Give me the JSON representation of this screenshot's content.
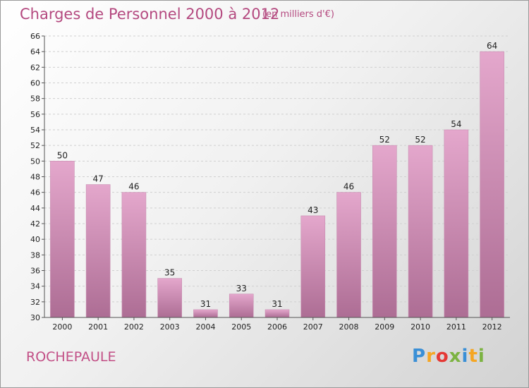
{
  "header": {
    "title": "Charges de Personnel 2000 à 2012",
    "unit": "(en milliers d'€)"
  },
  "footer": {
    "commune": "ROCHEPAULE",
    "logo": {
      "letters": [
        "P",
        "r",
        "o",
        "x",
        "i",
        "t",
        "i"
      ],
      "colors": [
        "#3a8fd6",
        "#f5a623",
        "#e53935",
        "#7cb342",
        "#3a8fd6",
        "#f5a623",
        "#7cb342"
      ]
    }
  },
  "colors": {
    "bar_light": "#e4a7cc",
    "bar_dark": "#ad6d94",
    "text_accent": "#b4497f"
  },
  "chart_data": {
    "type": "bar",
    "categories": [
      "2000",
      "2001",
      "2002",
      "2003",
      "2004",
      "2005",
      "2006",
      "2007",
      "2008",
      "2009",
      "2010",
      "2011",
      "2012"
    ],
    "values": [
      50,
      47,
      46,
      35,
      31,
      33,
      31,
      43,
      46,
      52,
      52,
      54,
      64
    ],
    "title": "Charges de Personnel 2000 à 2012",
    "ylim": [
      30,
      66
    ],
    "yticks": [
      30,
      32,
      34,
      36,
      38,
      40,
      42,
      44,
      46,
      48,
      50,
      52,
      54,
      56,
      58,
      60,
      62,
      64,
      66
    ],
    "grid": true,
    "legend": "none"
  }
}
